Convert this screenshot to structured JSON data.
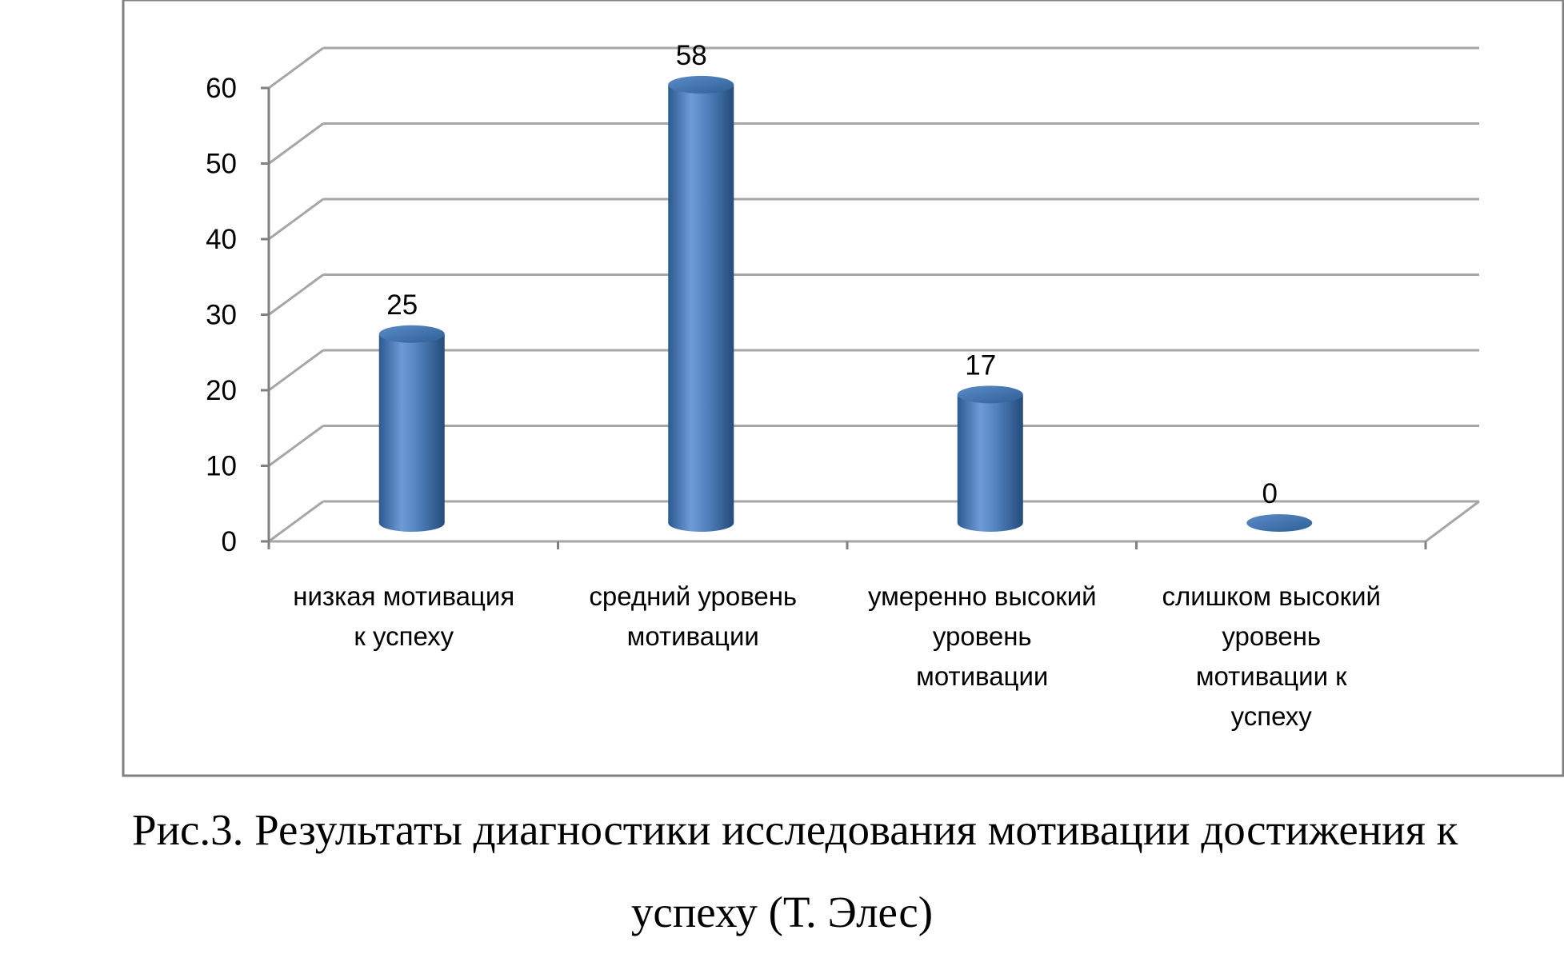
{
  "chart_data": {
    "type": "bar",
    "style": "3d-cylinder",
    "categories": [
      [
        "низкая мотивация",
        "к успеху"
      ],
      [
        "средний уровень",
        "мотивации"
      ],
      [
        "умеренно высокий",
        "уровень",
        "мотивации"
      ],
      [
        "слишком высокий",
        "уровень",
        "мотивации к",
        "успеху"
      ]
    ],
    "values": [
      25,
      58,
      17,
      0
    ],
    "data_labels": [
      "25",
      "58",
      "17",
      "0"
    ],
    "ylim": [
      0,
      60
    ],
    "yticks": [
      "0",
      "10",
      "20",
      "30",
      "40",
      "50",
      "60"
    ],
    "grid": true,
    "legend": "none",
    "colors": {
      "bar": "#4f81bd",
      "bar_dark": "#2c5a8f",
      "bar_light": "#7ea6dd",
      "grid": "#a6a6a6",
      "frame": "#808080"
    }
  },
  "caption": {
    "line1": "Рис.3. Результаты диагностики исследования мотивации достижения к",
    "line2": "успеху (Т. Элес)"
  }
}
